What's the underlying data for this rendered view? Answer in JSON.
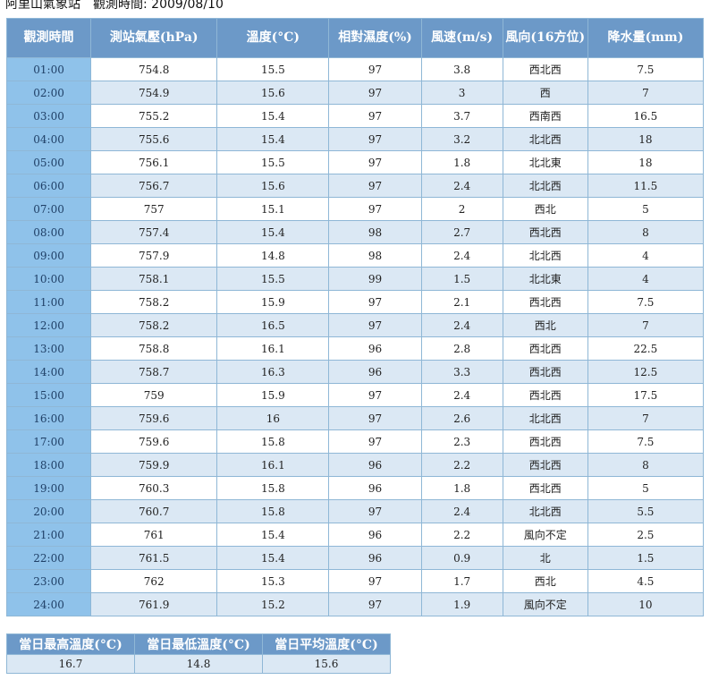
{
  "header": {
    "station": "阿里山氣象站",
    "date_label": "觀測時間: 2009/08/10"
  },
  "columns": [
    "觀測時間",
    "測站氣壓(hPa)",
    "溫度(°C)",
    "相對濕度(%)",
    "風速(m/s)",
    "風向(16方位)",
    "降水量(mm)"
  ],
  "rows": [
    [
      "01:00",
      "754.8",
      "15.5",
      "97",
      "3.8",
      "西北西",
      "7.5"
    ],
    [
      "02:00",
      "754.9",
      "15.6",
      "97",
      "3",
      "西",
      "7"
    ],
    [
      "03:00",
      "755.2",
      "15.4",
      "97",
      "3.7",
      "西南西",
      "16.5"
    ],
    [
      "04:00",
      "755.6",
      "15.4",
      "97",
      "3.2",
      "北北西",
      "18"
    ],
    [
      "05:00",
      "756.1",
      "15.5",
      "97",
      "1.8",
      "北北東",
      "18"
    ],
    [
      "06:00",
      "756.7",
      "15.6",
      "97",
      "2.4",
      "北北西",
      "11.5"
    ],
    [
      "07:00",
      "757",
      "15.1",
      "97",
      "2",
      "西北",
      "5"
    ],
    [
      "08:00",
      "757.4",
      "15.4",
      "98",
      "2.7",
      "西北西",
      "8"
    ],
    [
      "09:00",
      "757.9",
      "14.8",
      "98",
      "2.4",
      "北北西",
      "4"
    ],
    [
      "10:00",
      "758.1",
      "15.5",
      "99",
      "1.5",
      "北北東",
      "4"
    ],
    [
      "11:00",
      "758.2",
      "15.9",
      "97",
      "2.1",
      "西北西",
      "7.5"
    ],
    [
      "12:00",
      "758.2",
      "16.5",
      "97",
      "2.4",
      "西北",
      "7"
    ],
    [
      "13:00",
      "758.8",
      "16.1",
      "96",
      "2.8",
      "西北西",
      "22.5"
    ],
    [
      "14:00",
      "758.7",
      "16.3",
      "96",
      "3.3",
      "西北西",
      "12.5"
    ],
    [
      "15:00",
      "759",
      "15.9",
      "97",
      "2.4",
      "西北西",
      "17.5"
    ],
    [
      "16:00",
      "759.6",
      "16",
      "97",
      "2.6",
      "北北西",
      "7"
    ],
    [
      "17:00",
      "759.6",
      "15.8",
      "97",
      "2.3",
      "西北西",
      "7.5"
    ],
    [
      "18:00",
      "759.9",
      "16.1",
      "96",
      "2.2",
      "西北西",
      "8"
    ],
    [
      "19:00",
      "760.3",
      "15.8",
      "96",
      "1.8",
      "西北西",
      "5"
    ],
    [
      "20:00",
      "760.7",
      "15.8",
      "97",
      "2.4",
      "北北西",
      "5.5"
    ],
    [
      "21:00",
      "761",
      "15.4",
      "96",
      "2.2",
      "風向不定",
      "2.5"
    ],
    [
      "22:00",
      "761.5",
      "15.4",
      "96",
      "0.9",
      "北",
      "1.5"
    ],
    [
      "23:00",
      "762",
      "15.3",
      "97",
      "1.7",
      "西北",
      "4.5"
    ],
    [
      "24:00",
      "761.9",
      "15.2",
      "97",
      "1.9",
      "風向不定",
      "10"
    ]
  ],
  "summary": {
    "headers": [
      "當日最高溫度(°C)",
      "當日最低溫度(°C)",
      "當日平均溫度(°C)"
    ],
    "values": [
      "16.7",
      "14.8",
      "15.6"
    ]
  },
  "colors": {
    "header_bg": "#6c99c8",
    "time_cell_bg": "#8fc2ea",
    "row_alt_bg": "#dbe8f4",
    "border": "#8fb7d6"
  }
}
